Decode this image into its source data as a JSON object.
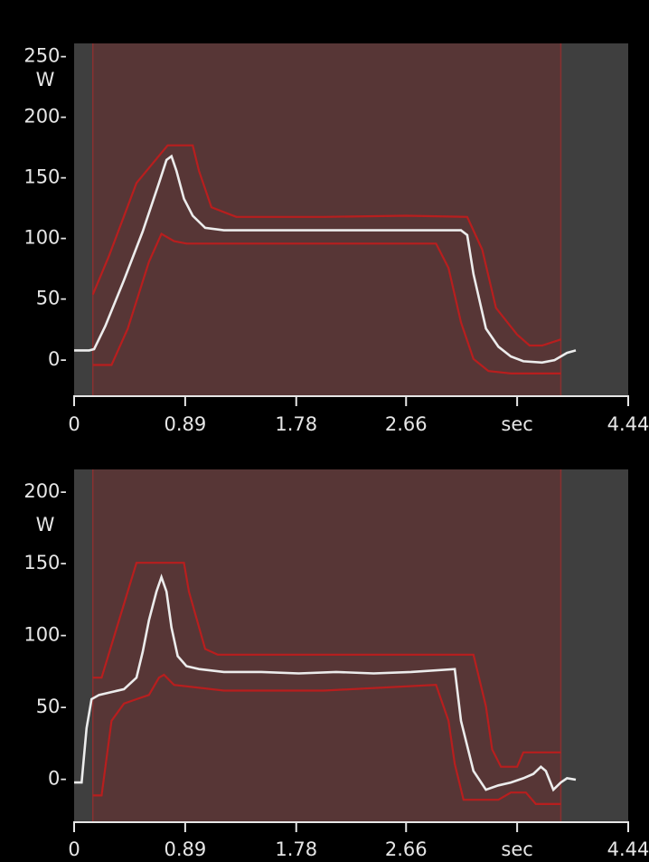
{
  "chart_data": [
    {
      "type": "line",
      "xlim": [
        0,
        4.44
      ],
      "ylim": [
        -30,
        260
      ],
      "ylabel": "W",
      "y_ticks": [
        0,
        50,
        100,
        150,
        200,
        250
      ],
      "y_tick_labels": [
        "0-",
        "50-",
        "100-",
        "150-",
        "200-",
        "250-"
      ],
      "x_ticks": [
        0,
        0.89,
        1.78,
        2.66,
        3.55,
        4.44
      ],
      "x_tick_labels": [
        "0",
        "0.89",
        "1.78",
        "2.66",
        "sec",
        "4.44"
      ],
      "window": [
        0.15,
        3.9
      ],
      "colors": {
        "background": "#3f3f3f",
        "window": "#5a3535",
        "envelope": "#b81e1e",
        "signal": "#ececec"
      },
      "series": [
        {
          "role": "upper-envelope",
          "x": [
            0.15,
            0.28,
            0.5,
            0.75,
            0.95,
            1.0,
            1.1,
            1.3,
            2.0,
            2.66,
            3.15,
            3.27,
            3.38,
            3.55,
            3.65,
            3.75,
            3.9
          ],
          "y": [
            53,
            85,
            145,
            176,
            176,
            155,
            125,
            117,
            117,
            118,
            117,
            90,
            42,
            20,
            11,
            11,
            16
          ]
        },
        {
          "role": "lower-envelope",
          "x": [
            0.15,
            0.3,
            0.43,
            0.6,
            0.7,
            0.8,
            0.9,
            1.2,
            2.0,
            2.9,
            3.0,
            3.1,
            3.2,
            3.32,
            3.5,
            3.9
          ],
          "y": [
            -5,
            -5,
            25,
            80,
            103,
            97,
            95,
            95,
            95,
            95,
            75,
            30,
            0,
            -10,
            -12,
            -12
          ]
        },
        {
          "role": "signal",
          "x": [
            0,
            0.12,
            0.16,
            0.25,
            0.4,
            0.55,
            0.68,
            0.74,
            0.78,
            0.82,
            0.88,
            0.95,
            1.05,
            1.2,
            1.5,
            2.0,
            2.5,
            3.0,
            3.1,
            3.15,
            3.2,
            3.3,
            3.4,
            3.5,
            3.6,
            3.75,
            3.85,
            3.95,
            4.02
          ],
          "y": [
            7,
            7,
            8,
            27,
            65,
            105,
            145,
            164,
            167,
            155,
            132,
            118,
            108,
            106,
            106,
            106,
            106,
            106,
            106,
            102,
            70,
            25,
            10,
            2,
            -2,
            -3,
            -1,
            5,
            7
          ]
        }
      ]
    },
    {
      "type": "line",
      "xlim": [
        0,
        4.44
      ],
      "ylim": [
        -30,
        215
      ],
      "ylabel": "W",
      "y_ticks": [
        0,
        50,
        100,
        150,
        200
      ],
      "y_tick_labels": [
        "0-",
        "50-",
        "100-",
        "150-",
        "200-"
      ],
      "x_ticks": [
        0,
        0.89,
        1.78,
        2.66,
        3.55,
        4.44
      ],
      "x_tick_labels": [
        "0",
        "0.89",
        "1.78",
        "2.66",
        "sec",
        "4.44"
      ],
      "window": [
        0.15,
        3.9
      ],
      "colors": {
        "background": "#3f3f3f",
        "window": "#5a3535",
        "envelope": "#b81e1e",
        "signal": "#ececec"
      },
      "series": [
        {
          "role": "upper-envelope",
          "x": [
            0.15,
            0.22,
            0.5,
            0.88,
            0.92,
            1.05,
            1.15,
            1.5,
            2.5,
            3.2,
            3.3,
            3.35,
            3.42,
            3.55,
            3.6,
            3.7,
            3.9
          ],
          "y": [
            70,
            70,
            150,
            150,
            130,
            90,
            86,
            86,
            86,
            86,
            50,
            20,
            8,
            8,
            18,
            18,
            18
          ]
        },
        {
          "role": "lower-envelope",
          "x": [
            0.15,
            0.22,
            0.3,
            0.4,
            0.5,
            0.6,
            0.68,
            0.72,
            0.8,
            1.2,
            2.0,
            2.9,
            3.0,
            3.05,
            3.12,
            3.25,
            3.4,
            3.5,
            3.62,
            3.7,
            3.9
          ],
          "y": [
            -12,
            -12,
            40,
            52,
            55,
            58,
            70,
            72,
            65,
            61,
            61,
            65,
            40,
            10,
            -15,
            -15,
            -15,
            -10,
            -10,
            -18,
            -18
          ]
        },
        {
          "role": "signal",
          "x": [
            0,
            0.06,
            0.1,
            0.14,
            0.2,
            0.3,
            0.4,
            0.5,
            0.55,
            0.6,
            0.66,
            0.7,
            0.74,
            0.78,
            0.83,
            0.9,
            1.0,
            1.2,
            1.5,
            1.8,
            2.1,
            2.4,
            2.7,
            3.05,
            3.1,
            3.2,
            3.3,
            3.4,
            3.5,
            3.6,
            3.68,
            3.74,
            3.78,
            3.84,
            3.9,
            3.95,
            4.02
          ],
          "y": [
            -3,
            -3,
            35,
            55,
            58,
            60,
            62,
            70,
            88,
            110,
            130,
            140,
            130,
            105,
            85,
            78,
            76,
            74,
            74,
            73,
            74,
            73,
            74,
            76,
            40,
            5,
            -8,
            -5,
            -3,
            0,
            3,
            8,
            5,
            -8,
            -3,
            0,
            -1
          ]
        }
      ]
    }
  ]
}
